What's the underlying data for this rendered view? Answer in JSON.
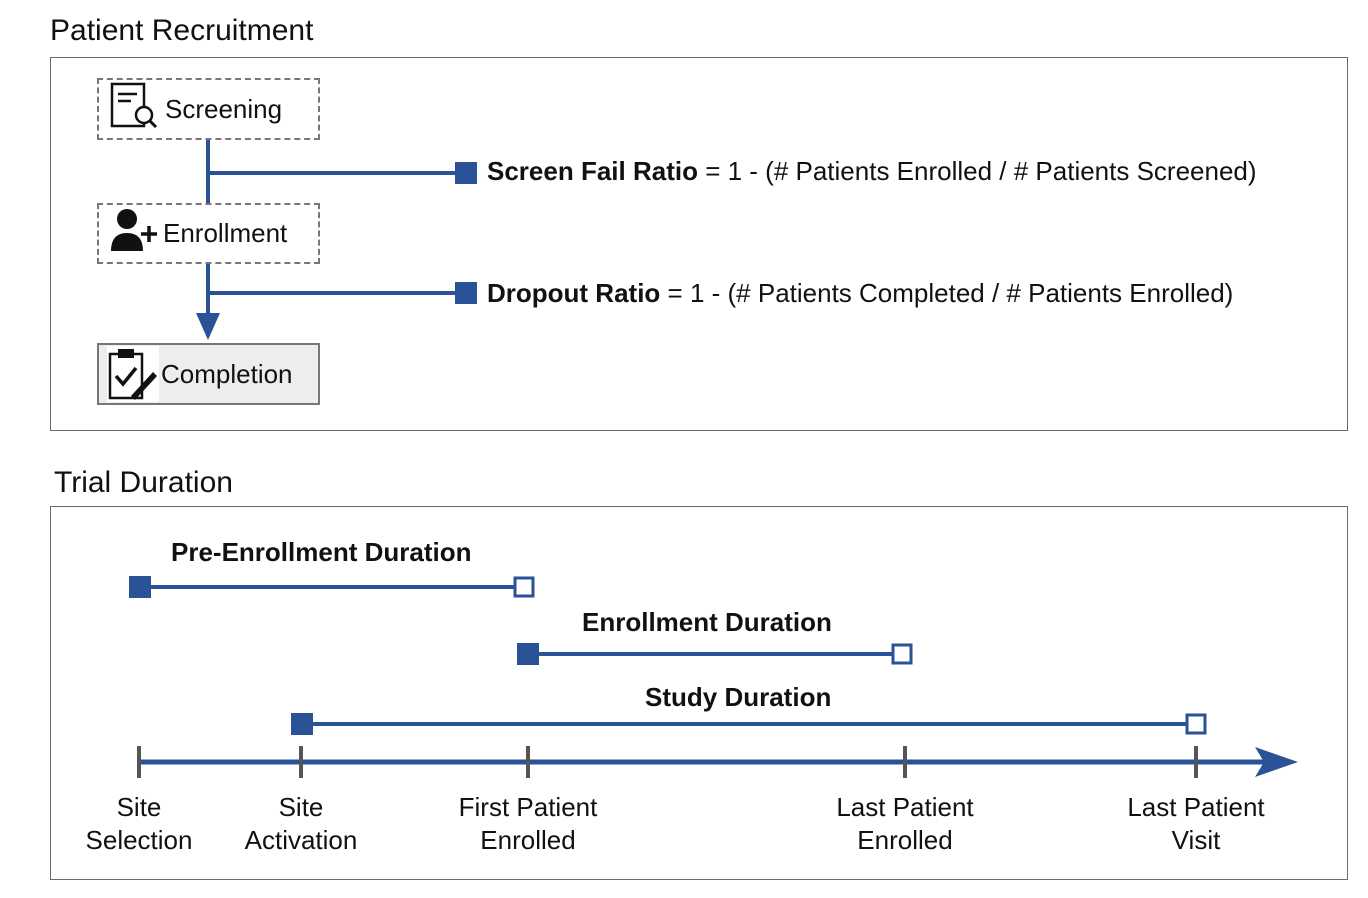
{
  "recruitment": {
    "title": "Patient Recruitment",
    "steps": [
      {
        "label": "Screening",
        "icon": "document-search-icon"
      },
      {
        "label": "Enrollment",
        "icon": "add-user-icon"
      },
      {
        "label": "Completion",
        "icon": "clipboard-check-icon"
      }
    ],
    "formulas": [
      {
        "term": "Screen Fail Ratio",
        "expr": " = 1 - (# Patients Enrolled / # Patients Screened)"
      },
      {
        "term": "Dropout Ratio",
        "expr": " = 1 - (# Patients Completed / # Patients Enrolled)"
      }
    ]
  },
  "duration": {
    "title": "Trial Duration",
    "spans": [
      {
        "label": "Pre-Enrollment Duration"
      },
      {
        "label": "Enrollment Duration"
      },
      {
        "label": "Study Duration"
      }
    ],
    "milestones": [
      {
        "line1": "Site",
        "line2": "Selection"
      },
      {
        "line1": "Site",
        "line2": "Activation"
      },
      {
        "line1": "First Patient",
        "line2": "Enrolled"
      },
      {
        "line1": "Last Patient",
        "line2": "Enrolled"
      },
      {
        "line1": "Last Patient",
        "line2": "Visit"
      }
    ]
  },
  "colors": {
    "accent": "#2a5296",
    "tick": "#555555",
    "border": "#6b6b6b"
  }
}
